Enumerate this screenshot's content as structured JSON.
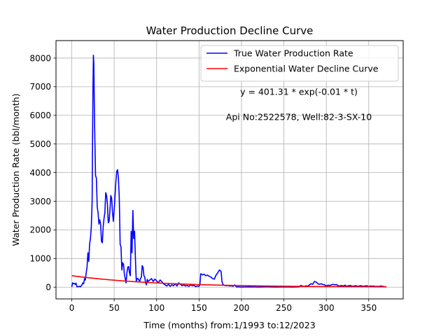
{
  "chart_data": {
    "type": "line",
    "title": "Water Production Decline Curve",
    "xlabel": "Time (months) from:1/1993 to:12/2023",
    "ylabel": "Water Production Rate (bbl/month)",
    "xlim": [
      -18.6,
      390.6
    ],
    "ylim": [
      -410,
      8610
    ],
    "x_ticks": [
      0,
      50,
      100,
      150,
      200,
      250,
      300,
      350
    ],
    "y_ticks": [
      0,
      1000,
      2000,
      3000,
      4000,
      5000,
      6000,
      7000,
      8000
    ],
    "grid": true,
    "legend_position": "upper right",
    "annotations": [
      "y = 401.31 * exp(-0.01 * t)",
      "Api No:2522578, Well:82-3-SX-10"
    ],
    "series": [
      {
        "name": "True Water Production Rate",
        "color": "#0000ff",
        "points": [
          [
            0,
            10
          ],
          [
            1,
            150
          ],
          [
            2,
            120
          ],
          [
            3,
            130
          ],
          [
            4,
            100
          ],
          [
            5,
            140
          ],
          [
            6,
            20
          ],
          [
            7,
            10
          ],
          [
            8,
            20
          ],
          [
            9,
            30
          ],
          [
            10,
            10
          ],
          [
            11,
            40
          ],
          [
            12,
            80
          ],
          [
            13,
            150
          ],
          [
            14,
            120
          ],
          [
            15,
            300
          ],
          [
            16,
            250
          ],
          [
            17,
            500
          ],
          [
            18,
            700
          ],
          [
            19,
            1200
          ],
          [
            20,
            900
          ],
          [
            21,
            1500
          ],
          [
            22,
            1700
          ],
          [
            23,
            2100
          ],
          [
            24,
            3000
          ],
          [
            24.5,
            5200
          ],
          [
            25,
            7000
          ],
          [
            25.5,
            8100
          ],
          [
            26,
            7800
          ],
          [
            26.5,
            6500
          ],
          [
            27,
            5500
          ],
          [
            28,
            3900
          ],
          [
            29,
            3800
          ],
          [
            30,
            2800
          ],
          [
            31,
            2600
          ],
          [
            32,
            2200
          ],
          [
            33,
            2350
          ],
          [
            34,
            2200
          ],
          [
            35,
            1600
          ],
          [
            36,
            1550
          ],
          [
            37,
            2100
          ],
          [
            38,
            2400
          ],
          [
            39,
            2600
          ],
          [
            40,
            3300
          ],
          [
            41,
            3200
          ],
          [
            42,
            2900
          ],
          [
            43,
            2250
          ],
          [
            44,
            2300
          ],
          [
            45,
            2700
          ],
          [
            46,
            3200
          ],
          [
            47,
            3100
          ],
          [
            48,
            2600
          ],
          [
            49,
            2300
          ],
          [
            50,
            2700
          ],
          [
            51,
            3200
          ],
          [
            52,
            3700
          ],
          [
            53,
            4050
          ],
          [
            54,
            4100
          ],
          [
            55,
            3800
          ],
          [
            56,
            3100
          ],
          [
            57,
            1500
          ],
          [
            58,
            1400
          ],
          [
            59,
            600
          ],
          [
            60,
            850
          ],
          [
            61,
            800
          ],
          [
            62,
            450
          ],
          [
            63,
            300
          ],
          [
            64,
            150
          ],
          [
            65,
            500
          ],
          [
            66,
            700
          ],
          [
            67,
            720
          ],
          [
            68,
            500
          ],
          [
            69,
            400
          ],
          [
            70,
            1950
          ],
          [
            71,
            1200
          ],
          [
            72,
            2680
          ],
          [
            73,
            1700
          ],
          [
            74,
            1950
          ],
          [
            75,
            1000
          ],
          [
            76,
            200
          ],
          [
            77,
            300
          ],
          [
            78,
            300
          ],
          [
            79,
            250
          ],
          [
            80,
            200
          ],
          [
            81,
            300
          ],
          [
            82,
            350
          ],
          [
            83,
            750
          ],
          [
            84,
            700
          ],
          [
            85,
            400
          ],
          [
            86,
            350
          ],
          [
            87,
            150
          ],
          [
            88,
            80
          ],
          [
            89,
            270
          ],
          [
            90,
            200
          ],
          [
            92,
            250
          ],
          [
            94,
            300
          ],
          [
            96,
            200
          ],
          [
            98,
            280
          ],
          [
            100,
            220
          ],
          [
            102,
            150
          ],
          [
            104,
            250
          ],
          [
            106,
            200
          ],
          [
            108,
            120
          ],
          [
            110,
            80
          ],
          [
            112,
            40
          ],
          [
            114,
            100
          ],
          [
            116,
            30
          ],
          [
            118,
            80
          ],
          [
            120,
            50
          ],
          [
            122,
            120
          ],
          [
            124,
            40
          ],
          [
            126,
            150
          ],
          [
            128,
            100
          ],
          [
            130,
            50
          ],
          [
            132,
            80
          ],
          [
            134,
            40
          ],
          [
            136,
            60
          ],
          [
            138,
            30
          ],
          [
            140,
            80
          ],
          [
            142,
            50
          ],
          [
            144,
            60
          ],
          [
            146,
            20
          ],
          [
            148,
            40
          ],
          [
            150,
            30
          ],
          [
            151,
            80
          ],
          [
            152,
            470
          ],
          [
            154,
            430
          ],
          [
            156,
            450
          ],
          [
            158,
            400
          ],
          [
            160,
            420
          ],
          [
            162,
            380
          ],
          [
            164,
            350
          ],
          [
            166,
            300
          ],
          [
            168,
            280
          ],
          [
            170,
            420
          ],
          [
            172,
            500
          ],
          [
            174,
            600
          ],
          [
            176,
            550
          ],
          [
            177,
            200
          ],
          [
            178,
            100
          ],
          [
            180,
            60
          ],
          [
            182,
            50
          ],
          [
            184,
            60
          ],
          [
            186,
            40
          ],
          [
            188,
            50
          ],
          [
            190,
            30
          ],
          [
            192,
            80
          ],
          [
            194,
            10
          ],
          [
            196,
            10
          ],
          [
            200,
            5
          ],
          [
            210,
            10
          ],
          [
            220,
            5
          ],
          [
            230,
            10
          ],
          [
            240,
            5
          ],
          [
            250,
            10
          ],
          [
            260,
            5
          ],
          [
            268,
            10
          ],
          [
            270,
            60
          ],
          [
            272,
            40
          ],
          [
            274,
            20
          ],
          [
            276,
            50
          ],
          [
            278,
            30
          ],
          [
            280,
            80
          ],
          [
            282,
            120
          ],
          [
            284,
            100
          ],
          [
            286,
            200
          ],
          [
            288,
            180
          ],
          [
            290,
            120
          ],
          [
            292,
            100
          ],
          [
            294,
            120
          ],
          [
            296,
            90
          ],
          [
            298,
            80
          ],
          [
            300,
            40
          ],
          [
            302,
            70
          ],
          [
            304,
            60
          ],
          [
            306,
            80
          ],
          [
            308,
            100
          ],
          [
            310,
            80
          ],
          [
            312,
            90
          ],
          [
            314,
            50
          ],
          [
            316,
            40
          ],
          [
            318,
            60
          ],
          [
            320,
            40
          ],
          [
            322,
            70
          ],
          [
            324,
            30
          ],
          [
            326,
            50
          ],
          [
            328,
            60
          ],
          [
            330,
            40
          ],
          [
            332,
            30
          ],
          [
            334,
            50
          ],
          [
            336,
            40
          ],
          [
            338,
            30
          ],
          [
            340,
            50
          ],
          [
            342,
            40
          ],
          [
            344,
            30
          ],
          [
            346,
            40
          ],
          [
            348,
            50
          ],
          [
            350,
            20
          ],
          [
            352,
            40
          ],
          [
            354,
            30
          ],
          [
            356,
            40
          ],
          [
            358,
            20
          ],
          [
            360,
            30
          ],
          [
            362,
            20
          ],
          [
            364,
            40
          ],
          [
            366,
            30
          ],
          [
            368,
            20
          ],
          [
            370,
            10
          ]
        ]
      },
      {
        "name": "Exponential Water Decline Curve",
        "color": "#ff0000",
        "equation": {
          "a": 401.31,
          "b": -0.01
        },
        "x_range": [
          0,
          371
        ]
      }
    ]
  }
}
